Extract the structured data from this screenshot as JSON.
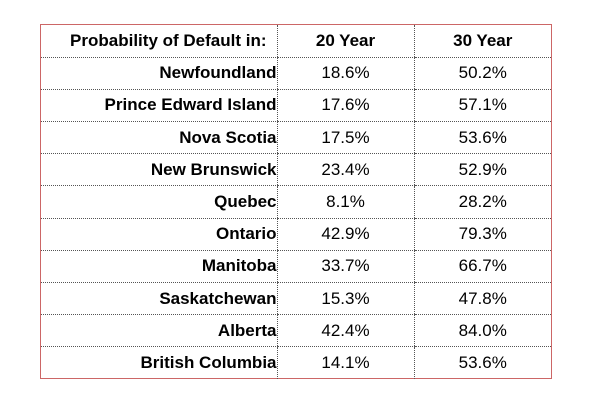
{
  "table": {
    "headers": [
      "Probability of Default in:",
      "20 Year",
      "30 Year"
    ],
    "rows": [
      {
        "province": "Newfoundland",
        "y20": "18.6%",
        "y30": "50.2%"
      },
      {
        "province": "Prince Edward Island",
        "y20": "17.6%",
        "y30": "57.1%"
      },
      {
        "province": "Nova Scotia",
        "y20": "17.5%",
        "y30": "53.6%"
      },
      {
        "province": "New Brunswick",
        "y20": "23.4%",
        "y30": "52.9%"
      },
      {
        "province": "Quebec",
        "y20": "8.1%",
        "y30": "28.2%"
      },
      {
        "province": "Ontario",
        "y20": "42.9%",
        "y30": "79.3%"
      },
      {
        "province": "Manitoba",
        "y20": "33.7%",
        "y30": "66.7%"
      },
      {
        "province": "Saskatchewan",
        "y20": "15.3%",
        "y30": "47.8%"
      },
      {
        "province": "Alberta",
        "y20": "42.4%",
        "y30": "84.0%"
      },
      {
        "province": "British Columbia",
        "y20": "14.1%",
        "y30": "53.6%"
      }
    ],
    "frame_color": "#cc6666"
  }
}
